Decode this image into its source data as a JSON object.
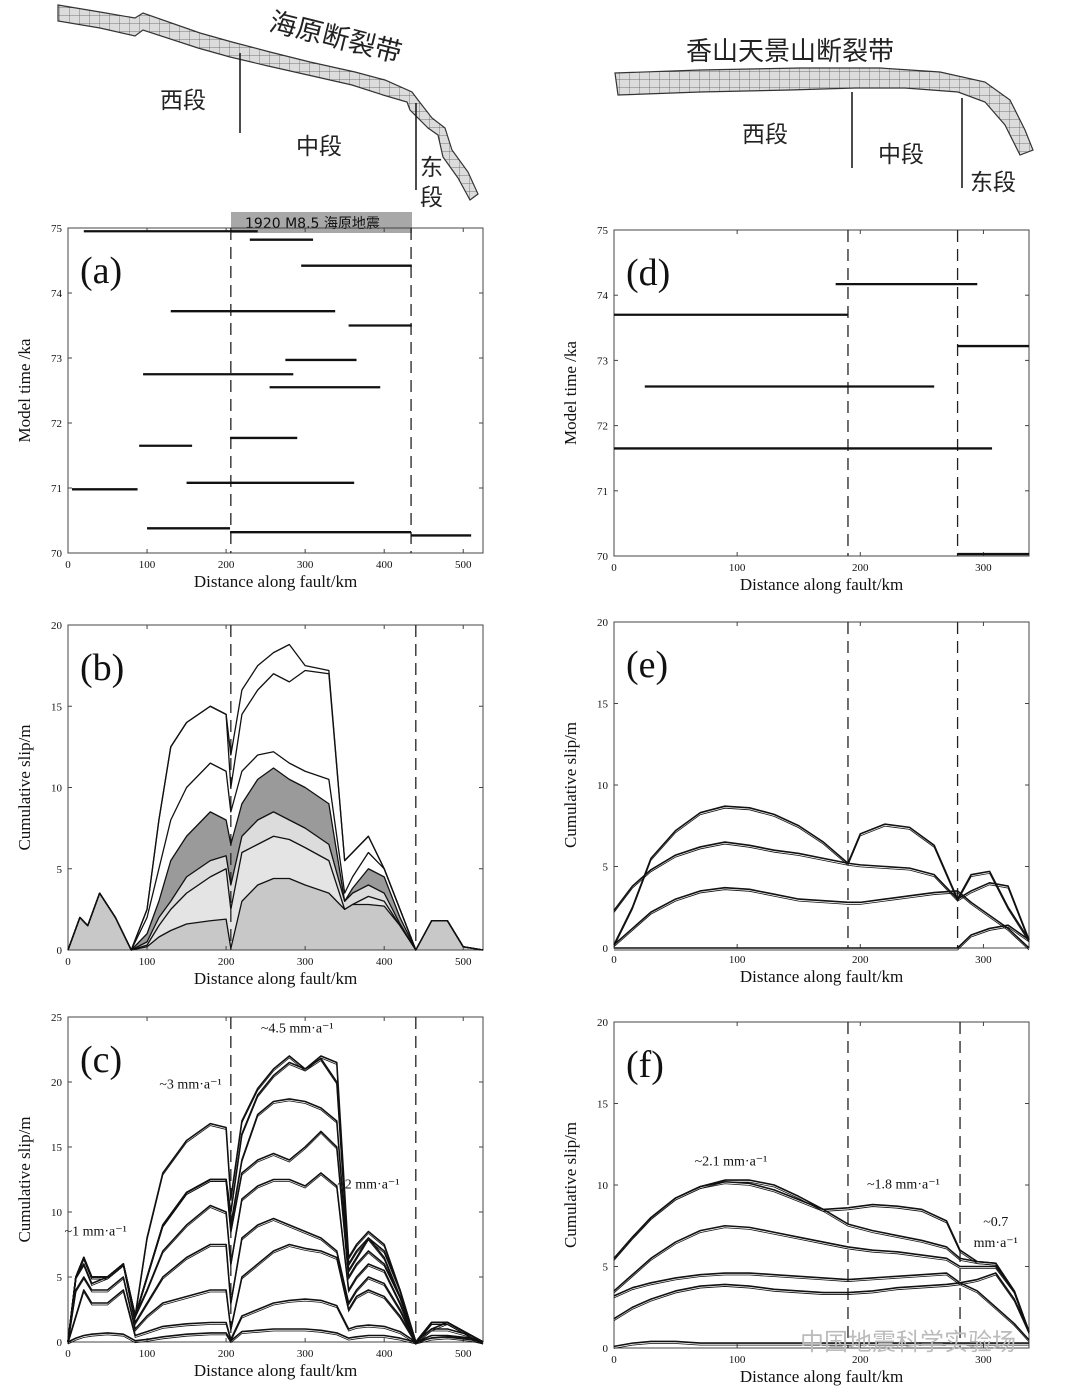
{
  "faults": [
    {
      "title": "海原断裂带",
      "segments": [
        "西段",
        "中段",
        "东段"
      ],
      "banner": "1920 M8.5 海原地震"
    },
    {
      "title": "香山天景山断裂带",
      "segments": [
        "西段",
        "中段",
        "东段"
      ]
    }
  ],
  "watermark": "中国地震科学实验场",
  "chart_data": [
    {
      "panel": "(a)",
      "type": "line",
      "xlabel": "Distance along fault/km",
      "ylabel": "Model time /ka",
      "xlim": [
        0,
        525
      ],
      "ylim": [
        70,
        75
      ],
      "xticks": [
        0,
        100,
        200,
        300,
        400,
        500
      ],
      "yticks": [
        70,
        71,
        72,
        73,
        74,
        75
      ],
      "boundaries": [
        206,
        434
      ],
      "ruptures": [
        [
          [
            20,
            240
          ],
          74.95
        ],
        [
          [
            230,
            310
          ],
          74.82
        ],
        [
          [
            295,
            435
          ],
          74.42
        ],
        [
          [
            130,
            338
          ],
          73.72
        ],
        [
          [
            355,
            435
          ],
          73.5
        ],
        [
          [
            275,
            365
          ],
          72.97
        ],
        [
          [
            95,
            285
          ],
          72.75
        ],
        [
          [
            255,
            395
          ],
          72.55
        ],
        [
          [
            205,
            290
          ],
          71.77
        ],
        [
          [
            90,
            157
          ],
          71.65
        ],
        [
          [
            150,
            362
          ],
          71.08
        ],
        [
          [
            5,
            88
          ],
          70.98
        ],
        [
          [
            100,
            205
          ],
          70.38
        ],
        [
          [
            205,
            434
          ],
          70.32
        ],
        [
          [
            434,
            510
          ],
          70.27
        ]
      ]
    },
    {
      "panel": "(b)",
      "type": "area",
      "xlabel": "Distance along fault/km",
      "ylabel": "Cumulative slip/m",
      "xlim": [
        0,
        525
      ],
      "ylim": [
        0,
        20
      ],
      "xticks": [
        0,
        100,
        200,
        300,
        400,
        500
      ],
      "yticks": [
        0,
        5,
        10,
        15,
        20
      ],
      "boundaries": [
        206,
        440
      ],
      "x": [
        0,
        15,
        25,
        40,
        60,
        80,
        100,
        115,
        130,
        150,
        180,
        200,
        206,
        220,
        240,
        260,
        280,
        300,
        330,
        350,
        360,
        380,
        400,
        420,
        440,
        460,
        480,
        500,
        525
      ],
      "series": [
        {
          "values": [
            0,
            2,
            1.5,
            3.5,
            2,
            0,
            0.2,
            0.8,
            1.2,
            1.6,
            1.8,
            1.9,
            0.1,
            3,
            4,
            4.4,
            4.4,
            4,
            3.5,
            2.5,
            2.8,
            2.8,
            2.7,
            1.5,
            0,
            1.8,
            1.8,
            0.2,
            0
          ],
          "fill": "#c8c8c8"
        },
        {
          "values": [
            0,
            2,
            1.5,
            3.5,
            2,
            0,
            0.3,
            1.5,
            2.5,
            3.5,
            4.5,
            5,
            2.5,
            6,
            6.5,
            7,
            6.8,
            6.3,
            5.5,
            2.5,
            2.8,
            3.3,
            3,
            1.5,
            0,
            1.8,
            1.8,
            0.2,
            0
          ],
          "fill": "#e4e4e4"
        },
        {
          "values": [
            0,
            2,
            1.5,
            3.5,
            2,
            0,
            0.5,
            2,
            3,
            4.5,
            5.5,
            5.8,
            4,
            7,
            8,
            8.5,
            8,
            7.5,
            6.5,
            3,
            3.5,
            4,
            3.5,
            1.6,
            0,
            1.8,
            1.8,
            0.2,
            0
          ],
          "fill": "#dcdcdc"
        },
        {
          "values": [
            0,
            2,
            1.5,
            3.5,
            2,
            0,
            1,
            3,
            5.5,
            7,
            8.5,
            8,
            6.5,
            9,
            10.5,
            11.2,
            10.5,
            10,
            9,
            3,
            3.8,
            5,
            4.5,
            2,
            0,
            1.8,
            1.8,
            0.2,
            0
          ],
          "fill": "#9a9a9a"
        },
        {
          "values": [
            0,
            2,
            1.5,
            3.5,
            2,
            0,
            2,
            5,
            8,
            10,
            11.5,
            11,
            8.5,
            11,
            12,
            12.2,
            11.5,
            11,
            10.5,
            3.5,
            4.5,
            6,
            5,
            2.5,
            0,
            1.8,
            1.8,
            0.2,
            0
          ],
          "fill": "none"
        },
        {
          "values": [
            0,
            2,
            1.5,
            3.5,
            2,
            0,
            2.5,
            8,
            12.5,
            14,
            15,
            14.5,
            10,
            14.5,
            16,
            17,
            16.5,
            17.2,
            17,
            5.5,
            6,
            7,
            5,
            2.5,
            0,
            1.8,
            1.8,
            0.2,
            0
          ],
          "fill": "none"
        },
        {
          "values": [
            0,
            2,
            1.5,
            3.5,
            2,
            0,
            2.5,
            8,
            12.5,
            14,
            15,
            14.5,
            12,
            16,
            17.5,
            18.3,
            18.8,
            17.5,
            17.2,
            5.5,
            6,
            7,
            5,
            2.5,
            0,
            1.8,
            1.8,
            0.2,
            0
          ],
          "fill": "none"
        }
      ]
    },
    {
      "panel": "(c)",
      "type": "line",
      "xlabel": "Distance along fault/km",
      "ylabel": "Cumulative slip/m",
      "xlim": [
        0,
        525
      ],
      "ylim": [
        0,
        25
      ],
      "xticks": [
        0,
        100,
        200,
        300,
        400,
        500
      ],
      "yticks": [
        0,
        5,
        10,
        15,
        20,
        25
      ],
      "boundaries": [
        206,
        440
      ],
      "annotations": [
        {
          "text": "~1 mm·a⁻¹",
          "x": 35,
          "y": 8.2
        },
        {
          "text": "~3 mm·a⁻¹",
          "x": 155,
          "y": 19.5
        },
        {
          "text": "~4.5 mm·a⁻¹",
          "x": 290,
          "y": 23.8
        },
        {
          "text": "~2 mm·a⁻¹",
          "x": 380,
          "y": 11.8
        }
      ],
      "x": [
        0,
        10,
        20,
        30,
        50,
        70,
        85,
        100,
        120,
        150,
        180,
        200,
        206,
        220,
        240,
        260,
        280,
        300,
        320,
        340,
        355,
        365,
        380,
        400,
        420,
        440,
        460,
        480,
        510,
        525
      ],
      "series": [
        {
          "values": [
            0,
            0.3,
            0.5,
            0.6,
            0.7,
            0.6,
            0.1,
            0.2,
            0.4,
            0.6,
            0.7,
            0.7,
            0.1,
            0.8,
            0.9,
            1,
            1,
            1,
            0.9,
            0.7,
            0.3,
            0.4,
            0.5,
            0.5,
            0.3,
            0,
            0.3,
            0.4,
            0.2,
            0
          ]
        },
        {
          "values": [
            0,
            2,
            4,
            3,
            3,
            4,
            0.5,
            0.8,
            1.2,
            1.4,
            1.5,
            1.5,
            0.2,
            2,
            2.5,
            3,
            3.2,
            3.3,
            3.2,
            2.8,
            1,
            1.2,
            1.3,
            1.2,
            0.8,
            0,
            0.5,
            0.5,
            0.3,
            0
          ]
        },
        {
          "values": [
            0,
            4,
            5,
            4,
            4,
            5,
            1,
            2,
            3,
            3.5,
            4,
            4,
            1,
            5,
            6,
            7,
            7.5,
            7.2,
            7,
            6.5,
            2.5,
            3.5,
            4,
            3.5,
            2,
            0,
            1,
            1,
            0.5,
            0
          ]
        },
        {
          "values": [
            0,
            5,
            6,
            4.5,
            5,
            6,
            1.5,
            3,
            5,
            6.5,
            7.5,
            7.5,
            3,
            8,
            9,
            9.5,
            9,
            8.5,
            8,
            7,
            3,
            4,
            5,
            4.5,
            2.5,
            0,
            1,
            1.5,
            0.5,
            0
          ]
        },
        {
          "values": [
            0,
            5,
            6.5,
            5,
            5,
            6,
            2,
            4,
            7,
            9,
            10.5,
            10,
            6,
            11,
            12,
            12.5,
            12.5,
            12,
            13,
            12,
            4,
            5,
            6,
            5.5,
            3,
            0,
            1.5,
            1.5,
            0.5,
            0
          ]
        },
        {
          "values": [
            0,
            5,
            6.5,
            5,
            5,
            6,
            2,
            5,
            9,
            11.5,
            12.5,
            12.5,
            8.5,
            13,
            14,
            14.5,
            14,
            15,
            16.2,
            15,
            5,
            6,
            7,
            6,
            3.5,
            0,
            1.5,
            1.5,
            0.5,
            0
          ]
        },
        {
          "values": [
            0,
            5,
            6.5,
            5,
            5,
            6,
            2,
            5,
            9,
            11.5,
            12.5,
            12.5,
            9,
            14,
            17.5,
            18.5,
            18.7,
            18.5,
            18,
            17,
            5.5,
            6.5,
            8,
            6.5,
            3.5,
            0,
            1.5,
            1.5,
            0.5,
            0
          ]
        },
        {
          "values": [
            0,
            5,
            6.5,
            5,
            5,
            6,
            2,
            5,
            9,
            11.5,
            12.5,
            12.5,
            10,
            16,
            19,
            20.5,
            21.5,
            21,
            21.8,
            20,
            6,
            7,
            8,
            7,
            4,
            0,
            1.5,
            1.5,
            0.5,
            0
          ]
        },
        {
          "values": [
            0,
            5,
            6.5,
            5,
            5,
            6,
            2,
            8,
            13,
            15.5,
            16.8,
            16.5,
            11,
            17,
            19.5,
            21,
            22,
            21,
            22,
            21.5,
            6.5,
            7.5,
            8.5,
            7.5,
            4,
            0,
            1.5,
            1.5,
            0.5,
            0
          ]
        }
      ]
    },
    {
      "panel": "(d)",
      "type": "line",
      "xlabel": "Distance along fault/km",
      "ylabel": "Model time /ka",
      "xlim": [
        0,
        337
      ],
      "ylim": [
        70,
        75
      ],
      "xticks": [
        0,
        100,
        200,
        300
      ],
      "yticks": [
        70,
        71,
        72,
        73,
        74,
        75
      ],
      "boundaries": [
        190,
        279
      ],
      "ruptures": [
        [
          [
            180,
            295
          ],
          74.17
        ],
        [
          [
            0,
            190
          ],
          73.7
        ],
        [
          [
            279,
            337
          ],
          73.22
        ],
        [
          [
            25,
            260
          ],
          72.6
        ],
        [
          [
            0,
            307
          ],
          71.65
        ],
        [
          [
            279,
            337
          ],
          70.03
        ]
      ]
    },
    {
      "panel": "(e)",
      "type": "line",
      "xlabel": "Distance along fault/km",
      "ylabel": "Cumulative slip/m",
      "xlim": [
        0,
        337
      ],
      "ylim": [
        0,
        20
      ],
      "xticks": [
        0,
        100,
        200,
        300
      ],
      "yticks": [
        0,
        5,
        10,
        15,
        20
      ],
      "boundaries": [
        190,
        279
      ],
      "x": [
        0,
        15,
        30,
        50,
        70,
        90,
        110,
        130,
        150,
        170,
        190,
        200,
        220,
        240,
        260,
        279,
        290,
        305,
        320,
        337
      ],
      "series": [
        {
          "values": [
            0.2,
            1.2,
            2.2,
            3,
            3.5,
            3.7,
            3.6,
            3.3,
            3,
            2.9,
            2.8,
            2.8,
            3,
            3.2,
            3.4,
            3.5,
            2.8,
            2,
            1.2,
            0
          ]
        },
        {
          "values": [
            2.3,
            3.8,
            4.8,
            5.7,
            6.2,
            6.5,
            6.3,
            6,
            5.8,
            5.5,
            5.2,
            5.1,
            5,
            4.9,
            4.5,
            3,
            3.5,
            4,
            3.8,
            0.5
          ]
        },
        {
          "values": [
            0.2,
            2.5,
            5.5,
            7.2,
            8.3,
            8.7,
            8.6,
            8.2,
            7.5,
            6.5,
            5.2,
            7,
            7.6,
            7.4,
            6.3,
            3,
            4.5,
            4.7,
            2.5,
            0.5
          ]
        },
        {
          "values": [
            0,
            0,
            0,
            0,
            0,
            0,
            0,
            0,
            0,
            0,
            0,
            0,
            0,
            0,
            0,
            0,
            0.8,
            1.2,
            1.4,
            0.5
          ]
        }
      ]
    },
    {
      "panel": "(f)",
      "type": "line",
      "xlabel": "Distance along fault/km",
      "ylabel": "Cumulative slip/m",
      "xlim": [
        0,
        337
      ],
      "ylim": [
        0,
        20
      ],
      "xticks": [
        0,
        100,
        200,
        300
      ],
      "yticks": [
        0,
        5,
        10,
        15,
        20
      ],
      "boundaries": [
        190,
        281
      ],
      "annotations": [
        {
          "text": "~2.1 mm·a⁻¹",
          "x": 95,
          "y": 11.2
        },
        {
          "text": "~1.8 mm·a⁻¹",
          "x": 235,
          "y": 9.8
        },
        {
          "text": "~0.7",
          "x": 310,
          "y": 7.5
        },
        {
          "text": "mm·a⁻¹",
          "x": 310,
          "y": 6.2
        }
      ],
      "x": [
        0,
        15,
        30,
        50,
        70,
        90,
        110,
        130,
        150,
        170,
        190,
        210,
        230,
        250,
        270,
        281,
        295,
        310,
        325,
        337
      ],
      "series": [
        {
          "values": [
            0.1,
            0.3,
            0.4,
            0.4,
            0.3,
            0.3,
            0.3,
            0.3,
            0.3,
            0.3,
            0.3,
            0.3,
            0.3,
            0.3,
            0.3,
            0.3,
            0.3,
            0.3,
            0.3,
            0.3
          ]
        },
        {
          "values": [
            1.8,
            2.5,
            3,
            3.5,
            3.8,
            3.9,
            3.8,
            3.6,
            3.5,
            3.4,
            3.4,
            3.5,
            3.7,
            3.8,
            3.9,
            4,
            3.5,
            2.5,
            1.5,
            0.5
          ]
        },
        {
          "values": [
            3.2,
            3.7,
            4,
            4.3,
            4.5,
            4.6,
            4.6,
            4.5,
            4.4,
            4.3,
            4.2,
            4.3,
            4.4,
            4.5,
            4.6,
            4,
            4.2,
            4.6,
            3,
            1
          ]
        },
        {
          "values": [
            3.5,
            4.5,
            5.5,
            6.5,
            7.2,
            7.5,
            7.4,
            7.1,
            6.8,
            6.5,
            6.2,
            6,
            5.9,
            5.7,
            5.5,
            5,
            5,
            5,
            3.5,
            1
          ]
        },
        {
          "values": [
            5.5,
            6.8,
            8,
            9.2,
            9.9,
            10.2,
            10.1,
            9.7,
            9.1,
            8.5,
            7.6,
            7.2,
            6.9,
            6.6,
            6.2,
            5.5,
            5.3,
            5.2,
            3.5,
            1
          ]
        },
        {
          "values": [
            5.5,
            6.8,
            8,
            9.2,
            9.9,
            10.3,
            10.3,
            10,
            9.3,
            8.5,
            8.6,
            8.8,
            8.7,
            8.5,
            7.8,
            6,
            5.3,
            5.2,
            3.5,
            1
          ]
        }
      ]
    }
  ]
}
